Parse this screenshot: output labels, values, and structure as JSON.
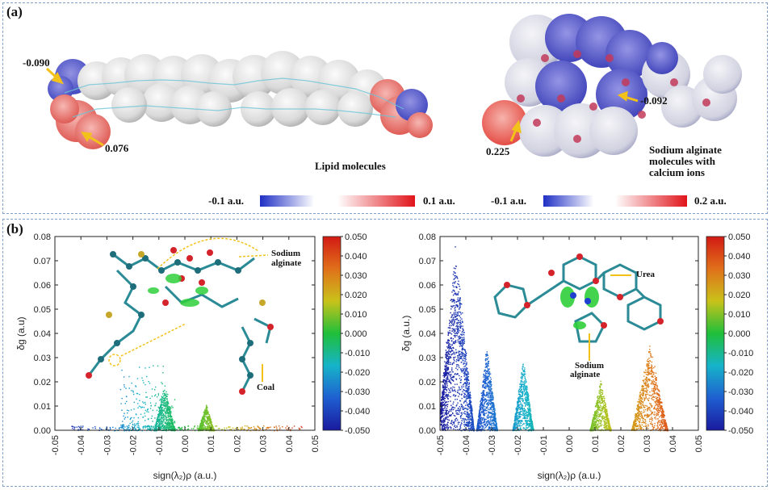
{
  "panel_a": {
    "label": "(a)",
    "lipid": {
      "caption": "Lipid molecules",
      "val_neg": "-0.090",
      "val_pos": "0.076",
      "colorbar": {
        "min_label": "-0.1 a.u.",
        "max_label": "0.1 a.u.",
        "colors": [
          "#1f2fc4",
          "#ffffff",
          "#e0141a"
        ]
      }
    },
    "alginate": {
      "caption_lines": [
        "Sodium alginate",
        "molecules with",
        "calcium ions"
      ],
      "val_neg": "-0.092",
      "val_pos": "0.225",
      "colorbar": {
        "min_label": "-0.1 a.u.",
        "max_label": "0.2 a.u.",
        "colors": [
          "#1f2fc4",
          "#ffffff",
          "#e0141a"
        ]
      }
    }
  },
  "panel_b": {
    "label": "(b)",
    "left_annotations": {
      "sodium_alginate": [
        "Sodium",
        "alginate"
      ],
      "coal": "Coal"
    },
    "right_annotations": {
      "urea": "Urea",
      "sodium_alginate": [
        "Sodium",
        "alginate"
      ]
    }
  },
  "colors": {
    "accent_arrow": "#f2c21b",
    "colorbar_stops": [
      "#1a1a9e",
      "#1f5fd1",
      "#16b3c9",
      "#1fbf3a",
      "#c9c21a",
      "#e0701a",
      "#d21a14"
    ]
  },
  "chart_data": [
    {
      "type": "scatter",
      "title": "",
      "xlabel": "sign(λ₂)ρ (a.u.)",
      "ylabel": "δg (a.u)",
      "xlim": [
        -0.05,
        0.05
      ],
      "ylim": [
        0,
        0.08
      ],
      "x_ticks": [
        "-0.05",
        "-0.04",
        "-0.03",
        "-0.02",
        "-0.01",
        "0.00",
        "0.01",
        "0.02",
        "0.03",
        "0.04",
        "0.05"
      ],
      "y_ticks": [
        "0.00",
        "0.01",
        "0.02",
        "0.03",
        "0.04",
        "0.05",
        "0.06",
        "0.07",
        "0.08"
      ],
      "colorbar_ticks": [
        "0.050",
        "0.040",
        "0.030",
        "0.020",
        "0.010",
        "0.000",
        "-0.010",
        "-0.020",
        "-0.030",
        "-0.040",
        "-0.050"
      ],
      "series": [
        {
          "name": "spike at -0.008",
          "center": -0.008,
          "width": 0.004,
          "peak": 0.02
        },
        {
          "name": "spike at 0.008",
          "center": 0.008,
          "width": 0.003,
          "peak": 0.012
        },
        {
          "name": "baseline",
          "range": [
            -0.045,
            0.045
          ],
          "peak": 0.002
        },
        {
          "name": "sparse",
          "range": [
            -0.025,
            -0.004
          ],
          "peak": 0.03
        }
      ]
    },
    {
      "type": "scatter",
      "title": "",
      "xlabel": "sign(λ₂)ρ (a.u.)",
      "ylabel": "δg (a.u.)",
      "xlim": [
        -0.05,
        0.05
      ],
      "ylim": [
        0,
        0.08
      ],
      "x_ticks": [
        "-0.05",
        "-0.04",
        "-0.03",
        "-0.02",
        "-0.01",
        "0.00",
        "0.01",
        "0.02",
        "0.03",
        "0.04",
        "0.05"
      ],
      "y_ticks": [
        "0.00",
        "0.01",
        "0.02",
        "0.03",
        "0.04",
        "0.05",
        "0.06",
        "0.07",
        "0.08"
      ],
      "colorbar_ticks": [
        "0.050",
        "0.040",
        "0.030",
        "0.020",
        "0.010",
        "0.000",
        "-0.010",
        "-0.020",
        "-0.030",
        "-0.040",
        "-0.050"
      ],
      "series": [
        {
          "name": "spike at -0.044",
          "center": -0.044,
          "width": 0.007,
          "peak": 0.079
        },
        {
          "name": "spike at -0.032",
          "center": -0.032,
          "width": 0.004,
          "peak": 0.036
        },
        {
          "name": "spike at -0.018",
          "center": -0.018,
          "width": 0.004,
          "peak": 0.031
        },
        {
          "name": "spike at 0.012",
          "center": 0.012,
          "width": 0.004,
          "peak": 0.022
        },
        {
          "name": "rise to 0.038",
          "center": 0.031,
          "width": 0.007,
          "peak": 0.037
        }
      ]
    }
  ]
}
